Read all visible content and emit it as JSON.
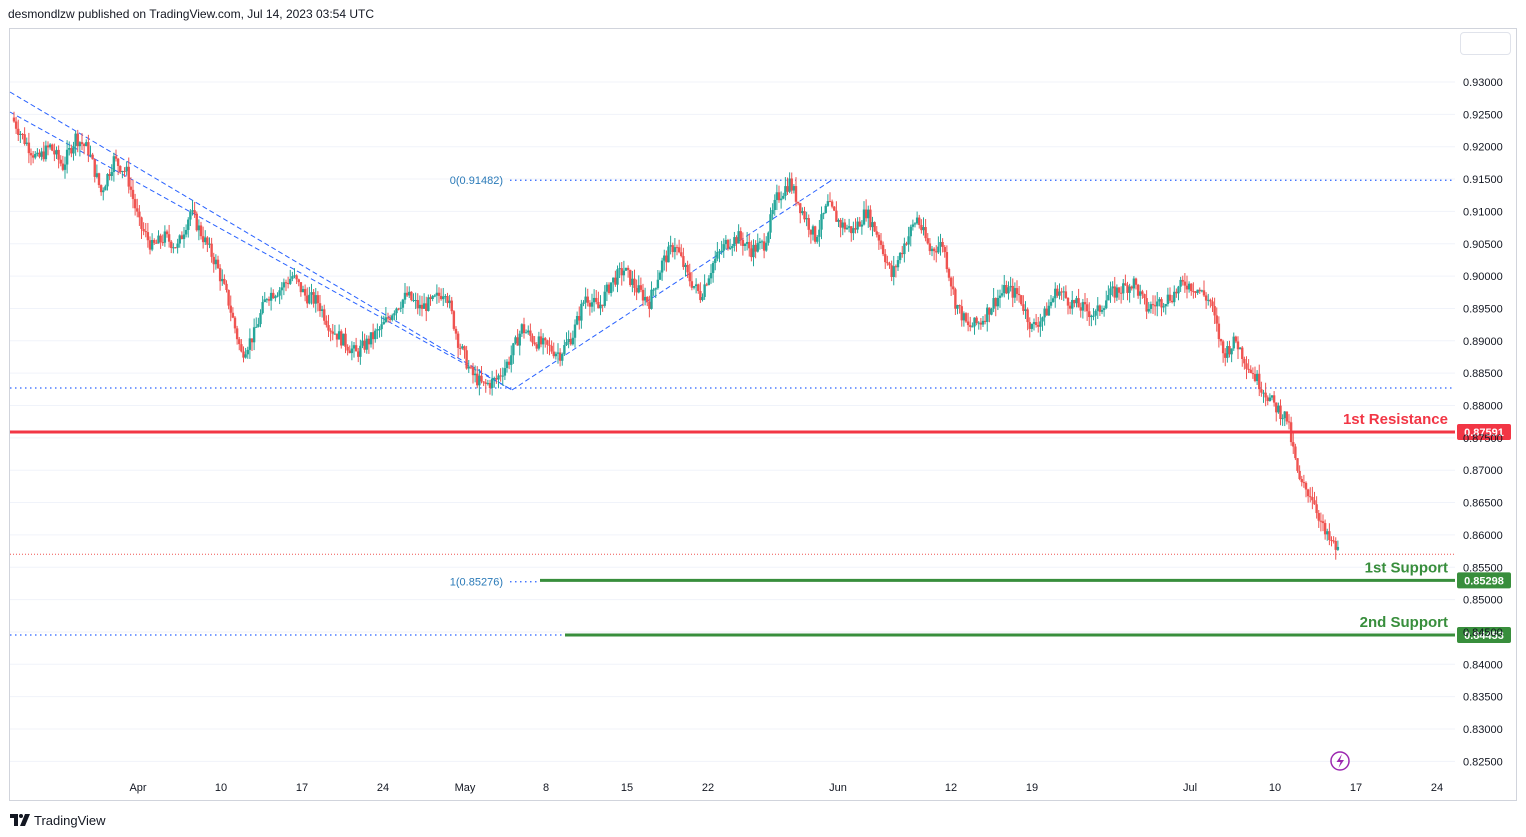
{
  "header": {
    "text": "desmondlzw published on TradingView.com, Jul 14, 2023 03:54 UTC"
  },
  "footer": {
    "brand": "TradingView"
  },
  "colors": {
    "up": "#26a69a",
    "down": "#ef5350",
    "resistance": "#f23645",
    "support": "#388e3c",
    "fib": "#2962ff",
    "fib_text": "#2a7ab8",
    "axis_text": "#131722",
    "alert": "#9c27b0"
  },
  "chart_data": {
    "type": "candlestick",
    "ylim": [
      0.822,
      0.937
    ],
    "y_ticks": [
      "0.93000",
      "0.92500",
      "0.92000",
      "0.91500",
      "0.91000",
      "0.90500",
      "0.90000",
      "0.89500",
      "0.89000",
      "0.88500",
      "0.88000",
      "0.87500",
      "0.87000",
      "0.86500",
      "0.86000",
      "0.85500",
      "0.85000",
      "0.84500",
      "0.84000",
      "0.83500",
      "0.83000",
      "0.82500"
    ],
    "x_ticks": [
      "Apr",
      "10",
      "17",
      "24",
      "May",
      "8",
      "15",
      "22",
      "Jun",
      "12",
      "19",
      "Jul",
      "10",
      "17",
      "24"
    ],
    "price_path": [
      0.9245,
      0.921,
      0.918,
      0.92,
      0.917,
      0.9215,
      0.9195,
      0.913,
      0.918,
      0.916,
      0.908,
      0.9045,
      0.906,
      0.9045,
      0.91,
      0.906,
      0.902,
      0.896,
      0.888,
      0.891,
      0.897,
      0.898,
      0.9,
      0.897,
      0.896,
      0.892,
      0.89,
      0.888,
      0.89,
      0.892,
      0.895,
      0.897,
      0.895,
      0.896,
      0.898,
      0.89,
      0.885,
      0.883,
      0.884,
      0.887,
      0.892,
      0.89,
      0.889,
      0.888,
      0.891,
      0.897,
      0.895,
      0.899,
      0.901,
      0.898,
      0.896,
      0.902,
      0.905,
      0.9,
      0.897,
      0.902,
      0.905,
      0.906,
      0.904,
      0.905,
      0.912,
      0.9145,
      0.91,
      0.906,
      0.911,
      0.908,
      0.907,
      0.91,
      0.906,
      0.9,
      0.905,
      0.909,
      0.904,
      0.905,
      0.896,
      0.892,
      0.893,
      0.896,
      0.898,
      0.897,
      0.892,
      0.894,
      0.898,
      0.896,
      0.895,
      0.894,
      0.897,
      0.898,
      0.899,
      0.895,
      0.896,
      0.897,
      0.899,
      0.898,
      0.896,
      0.888,
      0.89,
      0.886,
      0.883,
      0.88,
      0.878,
      0.868,
      0.866,
      0.86,
      0.8575
    ],
    "fib_levels": [
      {
        "label": "0(0.91482)",
        "value": 0.91482
      },
      {
        "label": "1(0.85276)",
        "value": 0.85276
      }
    ],
    "swing_low_level": 0.8827,
    "current_price": 0.857,
    "levels": [
      {
        "name": "1st Resistance",
        "value": 0.87591,
        "price_label": "0.87591",
        "color": "#f23645"
      },
      {
        "name": "1st Support",
        "value": 0.85298,
        "price_label": "0.85298",
        "color": "#388e3c"
      },
      {
        "name": "2nd Support",
        "value": 0.84453,
        "price_label": "0.84453",
        "color": "#388e3c"
      }
    ]
  }
}
